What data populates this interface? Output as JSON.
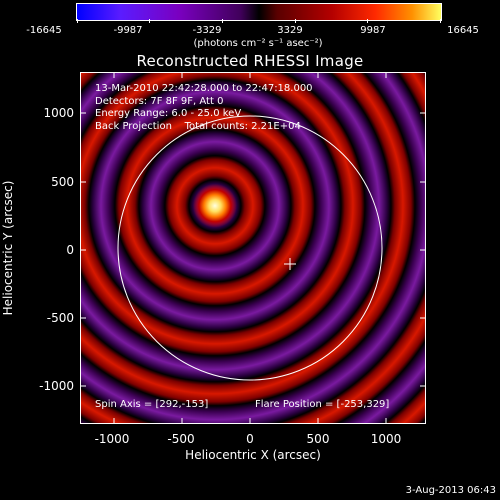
{
  "colorbar": {
    "tick_labels": [
      "-16645",
      "-9987",
      "-3329",
      "3329",
      "9987",
      "16645"
    ],
    "units": "(photons cm⁻² s⁻¹ asec⁻²)"
  },
  "title": "Reconstructed RHESSI Image",
  "annotation": {
    "time_range": "13-Mar-2010 22:42:28.000 to 22:47:18.000",
    "detectors": "Detectors: 7F 8F 9F, Att 0",
    "energy": "Energy Range: 6.0 - 25.0 keV",
    "method": "Back Projection",
    "counts": "Total counts: 2.21E+04"
  },
  "bottom_notes": {
    "spin_axis": "Spin Axis = [292,-153]",
    "flare_position": "Flare Position = [-253,329]"
  },
  "axes": {
    "xlabel": "Heliocentric X (arcsec)",
    "ylabel": "Heliocentric Y (arcsec)",
    "x_ticks": [
      "-1000",
      "-500",
      "0",
      "500",
      "1000"
    ],
    "y_ticks": [
      "1000",
      "500",
      "0",
      "-500",
      "-1000"
    ]
  },
  "timestamp": "3-Aug-2013 06:43"
}
